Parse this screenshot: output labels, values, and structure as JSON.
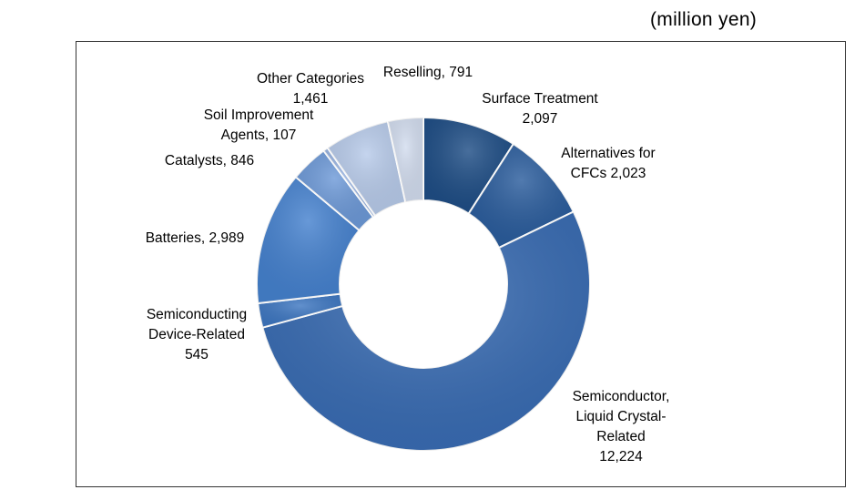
{
  "unit_label": "(million yen)",
  "chart_data": {
    "type": "pie",
    "donut": true,
    "legend": "none",
    "unit": "(million yen)",
    "slices": [
      {
        "label_lines": [
          "Surface Treatment",
          "2,097"
        ],
        "value": 2097,
        "color": "#1f4e86"
      },
      {
        "label_lines": [
          "Alternatives for",
          "CFCs 2,023"
        ],
        "value": 2023,
        "color": "#2b5d9d"
      },
      {
        "label_lines": [
          "Semiconductor,",
          "Liquid Crystal-",
          "Related",
          "12,224"
        ],
        "value": 12224,
        "color": "#3a6db4"
      },
      {
        "label_lines": [
          "Semiconducting",
          "Device-Related",
          "545"
        ],
        "value": 545,
        "color": "#3f78c2"
      },
      {
        "label_lines": [
          "Batteries, 2,989"
        ],
        "value": 2989,
        "color": "#4682cf"
      },
      {
        "label_lines": [
          "Catalysts, 846"
        ],
        "value": 846,
        "color": "#6e9ad8"
      },
      {
        "label_lines": [
          "Soil Improvement",
          "Agents, 107"
        ],
        "value": 107,
        "color": "#9bb6e3"
      },
      {
        "label_lines": [
          "Other Categories",
          "1,461"
        ],
        "value": 1461,
        "color": "#b8cbea"
      },
      {
        "label_lines": [
          "Reselling, 791"
        ],
        "value": 791,
        "color": "#d3ddef"
      }
    ]
  }
}
